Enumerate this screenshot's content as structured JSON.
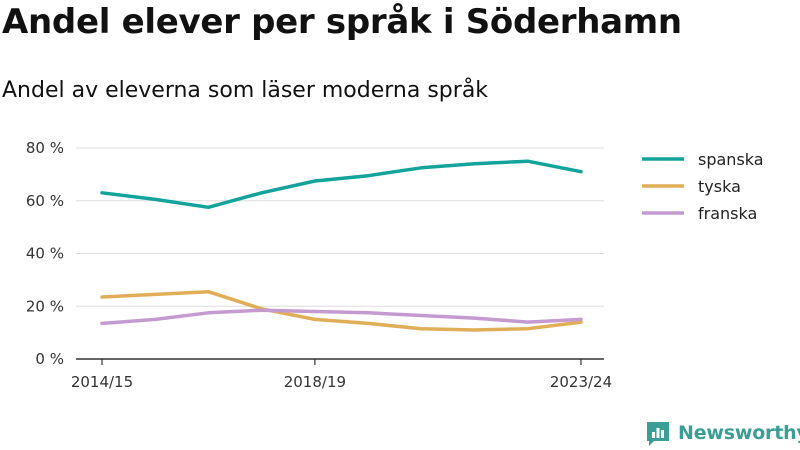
{
  "title": "Andel elever per språk i Söderhamn",
  "subtitle": "Andel av eleverna som läser moderna språk",
  "brand": {
    "name": "Newsworthy",
    "icon": "newsworthy-logo-icon"
  },
  "chart_data": {
    "type": "line",
    "x": [
      "2014/15",
      "2015/16",
      "2016/17",
      "2017/18",
      "2018/19",
      "2019/20",
      "2020/21",
      "2021/22",
      "2022/23",
      "2023/24"
    ],
    "x_tick_labels": [
      "2014/15",
      "2018/19",
      "2023/24"
    ],
    "y_tick_labels": [
      "0 %",
      "20 %",
      "40 %",
      "60 %",
      "80 %"
    ],
    "y_ticks": [
      0,
      20,
      40,
      60,
      80
    ],
    "ylim": [
      0,
      80
    ],
    "grid": true,
    "legend_position": "right",
    "series": [
      {
        "name": "spanska",
        "color": "#14a39a",
        "values": [
          63,
          60.5,
          57.5,
          63,
          67.5,
          69.5,
          72.5,
          74,
          75,
          71
        ]
      },
      {
        "name": "tyska",
        "color": "#e0ae57",
        "values": [
          23.5,
          24.5,
          25.5,
          19,
          15,
          13.5,
          11.5,
          11,
          11.5,
          14
        ]
      },
      {
        "name": "franska",
        "color": "#c49ad0",
        "values": [
          13.5,
          15,
          17.5,
          18.5,
          18,
          17.5,
          16.5,
          15.5,
          14,
          15
        ]
      }
    ]
  }
}
